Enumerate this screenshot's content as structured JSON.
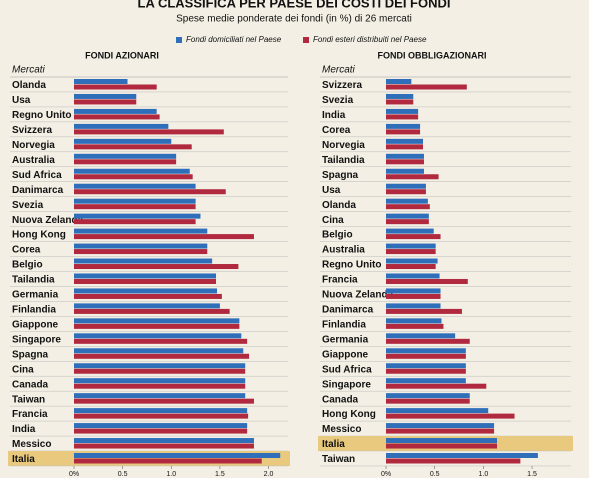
{
  "header": {
    "title": "LA CLASSIFICA PER PAESE DEI COSTI DEI FONDI",
    "subtitle": "Spese medie ponderate dei fondi (in %) di 26 mercati"
  },
  "chart_data": [
    {
      "type": "hbar",
      "title": "FONDI AZIONARI",
      "category_header": "Mercati",
      "highlight": 25,
      "categories": [
        "Olanda",
        "Usa",
        "Regno Unito",
        "Svizzera",
        "Norvegia",
        "Australia",
        "Sud Africa",
        "Danimarca",
        "Svezia",
        "Nuova Zelanda",
        "Hong Kong",
        "Corea",
        "Belgio",
        "Tailandia",
        "Germania",
        "Finlandia",
        "Giappone",
        "Singapore",
        "Spagna",
        "Cina",
        "Canada",
        "Taiwan",
        "Francia",
        "India",
        "Messico",
        "Italia"
      ],
      "series": [
        {
          "name": "Fondi domiciliati nel Paese",
          "color": "#2f6fba",
          "values": [
            0.55,
            0.64,
            0.85,
            0.97,
            1.0,
            1.05,
            1.19,
            1.25,
            1.25,
            1.3,
            1.37,
            1.37,
            1.42,
            1.46,
            1.47,
            1.5,
            1.7,
            1.72,
            1.74,
            1.76,
            1.76,
            1.76,
            1.78,
            1.78,
            1.85,
            2.12
          ]
        },
        {
          "name": "Fondi esteri distribuiti nel Paese",
          "color": "#b0293e",
          "values": [
            0.85,
            0.64,
            0.88,
            1.54,
            1.21,
            1.05,
            1.22,
            1.56,
            1.25,
            1.25,
            1.85,
            1.37,
            1.69,
            1.46,
            1.52,
            1.6,
            1.7,
            1.78,
            1.8,
            1.76,
            1.76,
            1.85,
            1.79,
            1.78,
            1.85,
            1.93
          ]
        }
      ],
      "xlim": [
        0,
        2.2
      ],
      "xticks": [
        {
          "value": 0,
          "label": "0%"
        },
        0.5,
        {
          "value": 1,
          "label": "1.0"
        },
        1.5,
        {
          "value": 2,
          "label": "2.0"
        }
      ]
    },
    {
      "type": "hbar",
      "title": "FONDI OBBLIGAZIONARI",
      "category_header": "Mercati",
      "highlight": 24,
      "categories": [
        "Svizzera",
        "Svezia",
        "India",
        "Corea",
        "Norvegia",
        "Tailandia",
        "Spagna",
        "Usa",
        "Olanda",
        "Cina",
        "Belgio",
        "Australia",
        "Regno Unito",
        "Francia",
        "Nuova Zelanda",
        "Danimarca",
        "Finlandia",
        "Germania",
        "Giappone",
        "Sud Africa",
        "Singapore",
        "Canada",
        "Hong Kong",
        "Messico",
        "Italia",
        "Taiwan"
      ],
      "series": [
        {
          "color": "#2f6fba",
          "values": [
            0.26,
            0.28,
            0.33,
            0.35,
            0.38,
            0.39,
            0.39,
            0.41,
            0.43,
            0.44,
            0.49,
            0.51,
            0.53,
            0.55,
            0.56,
            0.56,
            0.57,
            0.71,
            0.82,
            0.82,
            0.82,
            0.86,
            1.05,
            1.11,
            1.14,
            1.56
          ]
        },
        {
          "color": "#b0293e",
          "values": [
            0.83,
            0.28,
            0.33,
            0.35,
            0.38,
            0.39,
            0.54,
            0.41,
            0.45,
            0.44,
            0.56,
            0.51,
            0.51,
            0.84,
            0.56,
            0.78,
            0.59,
            0.86,
            0.82,
            0.82,
            1.03,
            0.86,
            1.32,
            1.11,
            1.14,
            1.38
          ]
        }
      ],
      "xlim": [
        0,
        1.9
      ],
      "xticks": [
        {
          "value": 0,
          "label": "0%"
        },
        0.5,
        {
          "value": 1,
          "label": "1.0"
        },
        1.5
      ]
    }
  ]
}
